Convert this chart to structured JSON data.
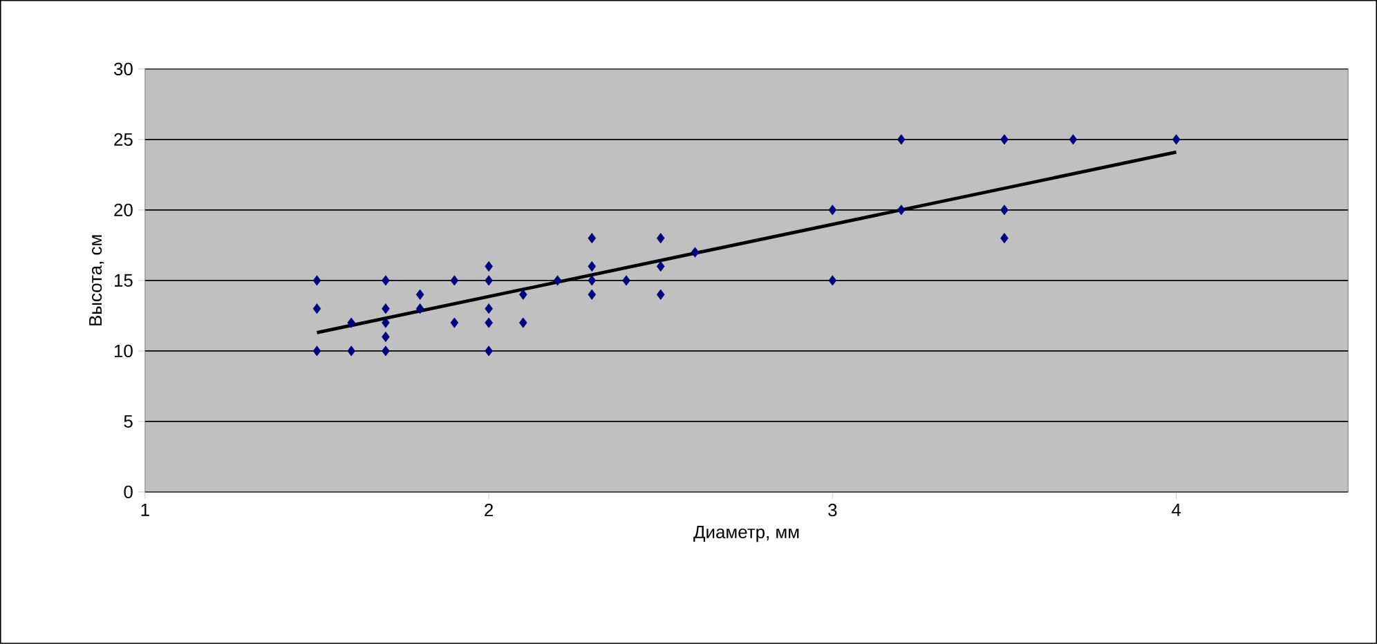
{
  "chart_data": {
    "type": "scatter",
    "xlabel": "Диаметр, мм",
    "ylabel": "Высота, см",
    "xlim": [
      1,
      4.5
    ],
    "xticks": [
      1,
      2,
      3,
      4
    ],
    "ylim": [
      0,
      30
    ],
    "yticks": [
      0,
      5,
      10,
      15,
      20,
      25,
      30
    ],
    "grid": "y",
    "marker": "diamond",
    "series": [
      {
        "color": "#000080",
        "x": [
          1.5,
          1.5,
          1.5,
          1.6,
          1.6,
          1.7,
          1.7,
          1.7,
          1.7,
          1.7,
          1.8,
          1.8,
          1.9,
          1.9,
          2.0,
          2.0,
          2.0,
          2.0,
          2.0,
          2.1,
          2.1,
          2.2,
          2.3,
          2.3,
          2.3,
          2.3,
          2.4,
          2.5,
          2.5,
          2.5,
          2.6,
          3.0,
          3.0,
          3.2,
          3.2,
          3.5,
          3.5,
          3.5,
          3.7,
          4.0
        ],
        "values": [
          15,
          13,
          10,
          12,
          10,
          15,
          13,
          12,
          11,
          10,
          14,
          13,
          15,
          12,
          16,
          15,
          13,
          12,
          10,
          14,
          12,
          15,
          18,
          16,
          15,
          14,
          15,
          18,
          16,
          14,
          17,
          20,
          15,
          25,
          20,
          25,
          20,
          18,
          25,
          25
        ]
      },
      {
        "type": "line",
        "color": "#000000",
        "marker": "none",
        "x": [
          1.5,
          4.0
        ],
        "values": [
          11.3,
          24.1
        ]
      }
    ]
  }
}
